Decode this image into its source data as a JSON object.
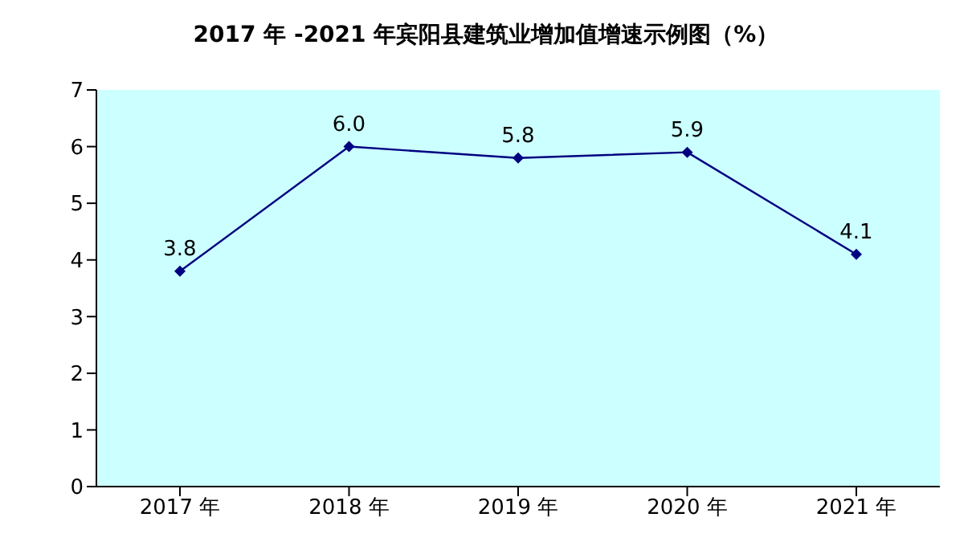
{
  "chart_data": {
    "type": "line",
    "title": "2017 年 -2021 年宾阳县建筑业增加值增速示例图（%）",
    "categories": [
      "2017 年",
      "2018 年",
      "2019 年",
      "2020 年",
      "2021 年"
    ],
    "series": [
      {
        "color": "#000080",
        "values": [
          3.8,
          6.0,
          5.8,
          5.9,
          4.1
        ],
        "value_labels": [
          "3.8",
          "6.0",
          "5.8",
          "5.9",
          "4.1"
        ]
      }
    ],
    "ylim": [
      0,
      7
    ],
    "yticks": [
      0,
      1,
      2,
      3,
      4,
      5,
      6,
      7
    ],
    "grid": false,
    "legend": false,
    "marker": "diamond",
    "line_style": "solid"
  }
}
